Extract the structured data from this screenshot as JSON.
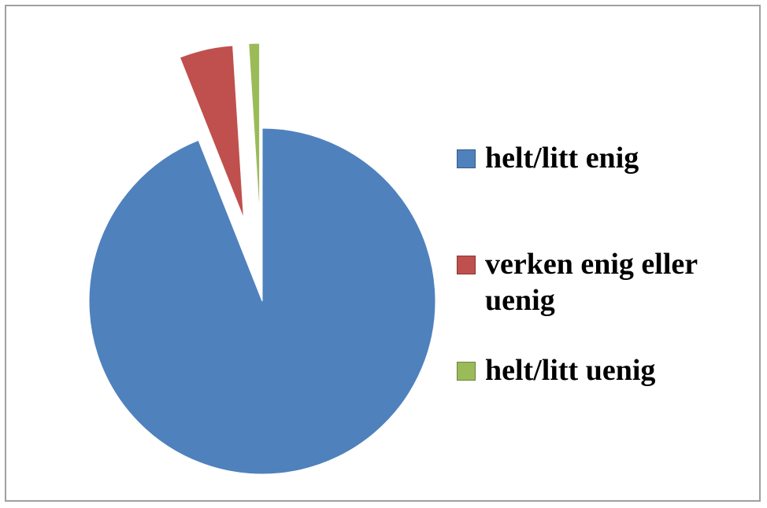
{
  "chart_data": {
    "type": "pie",
    "categories": [
      "helt/litt enig",
      "verken enig eller uenig",
      "helt/litt uenig"
    ],
    "values": [
      94,
      5,
      1
    ],
    "colors": [
      "#4f81bd",
      "#c0504d",
      "#9bbb59"
    ]
  }
}
